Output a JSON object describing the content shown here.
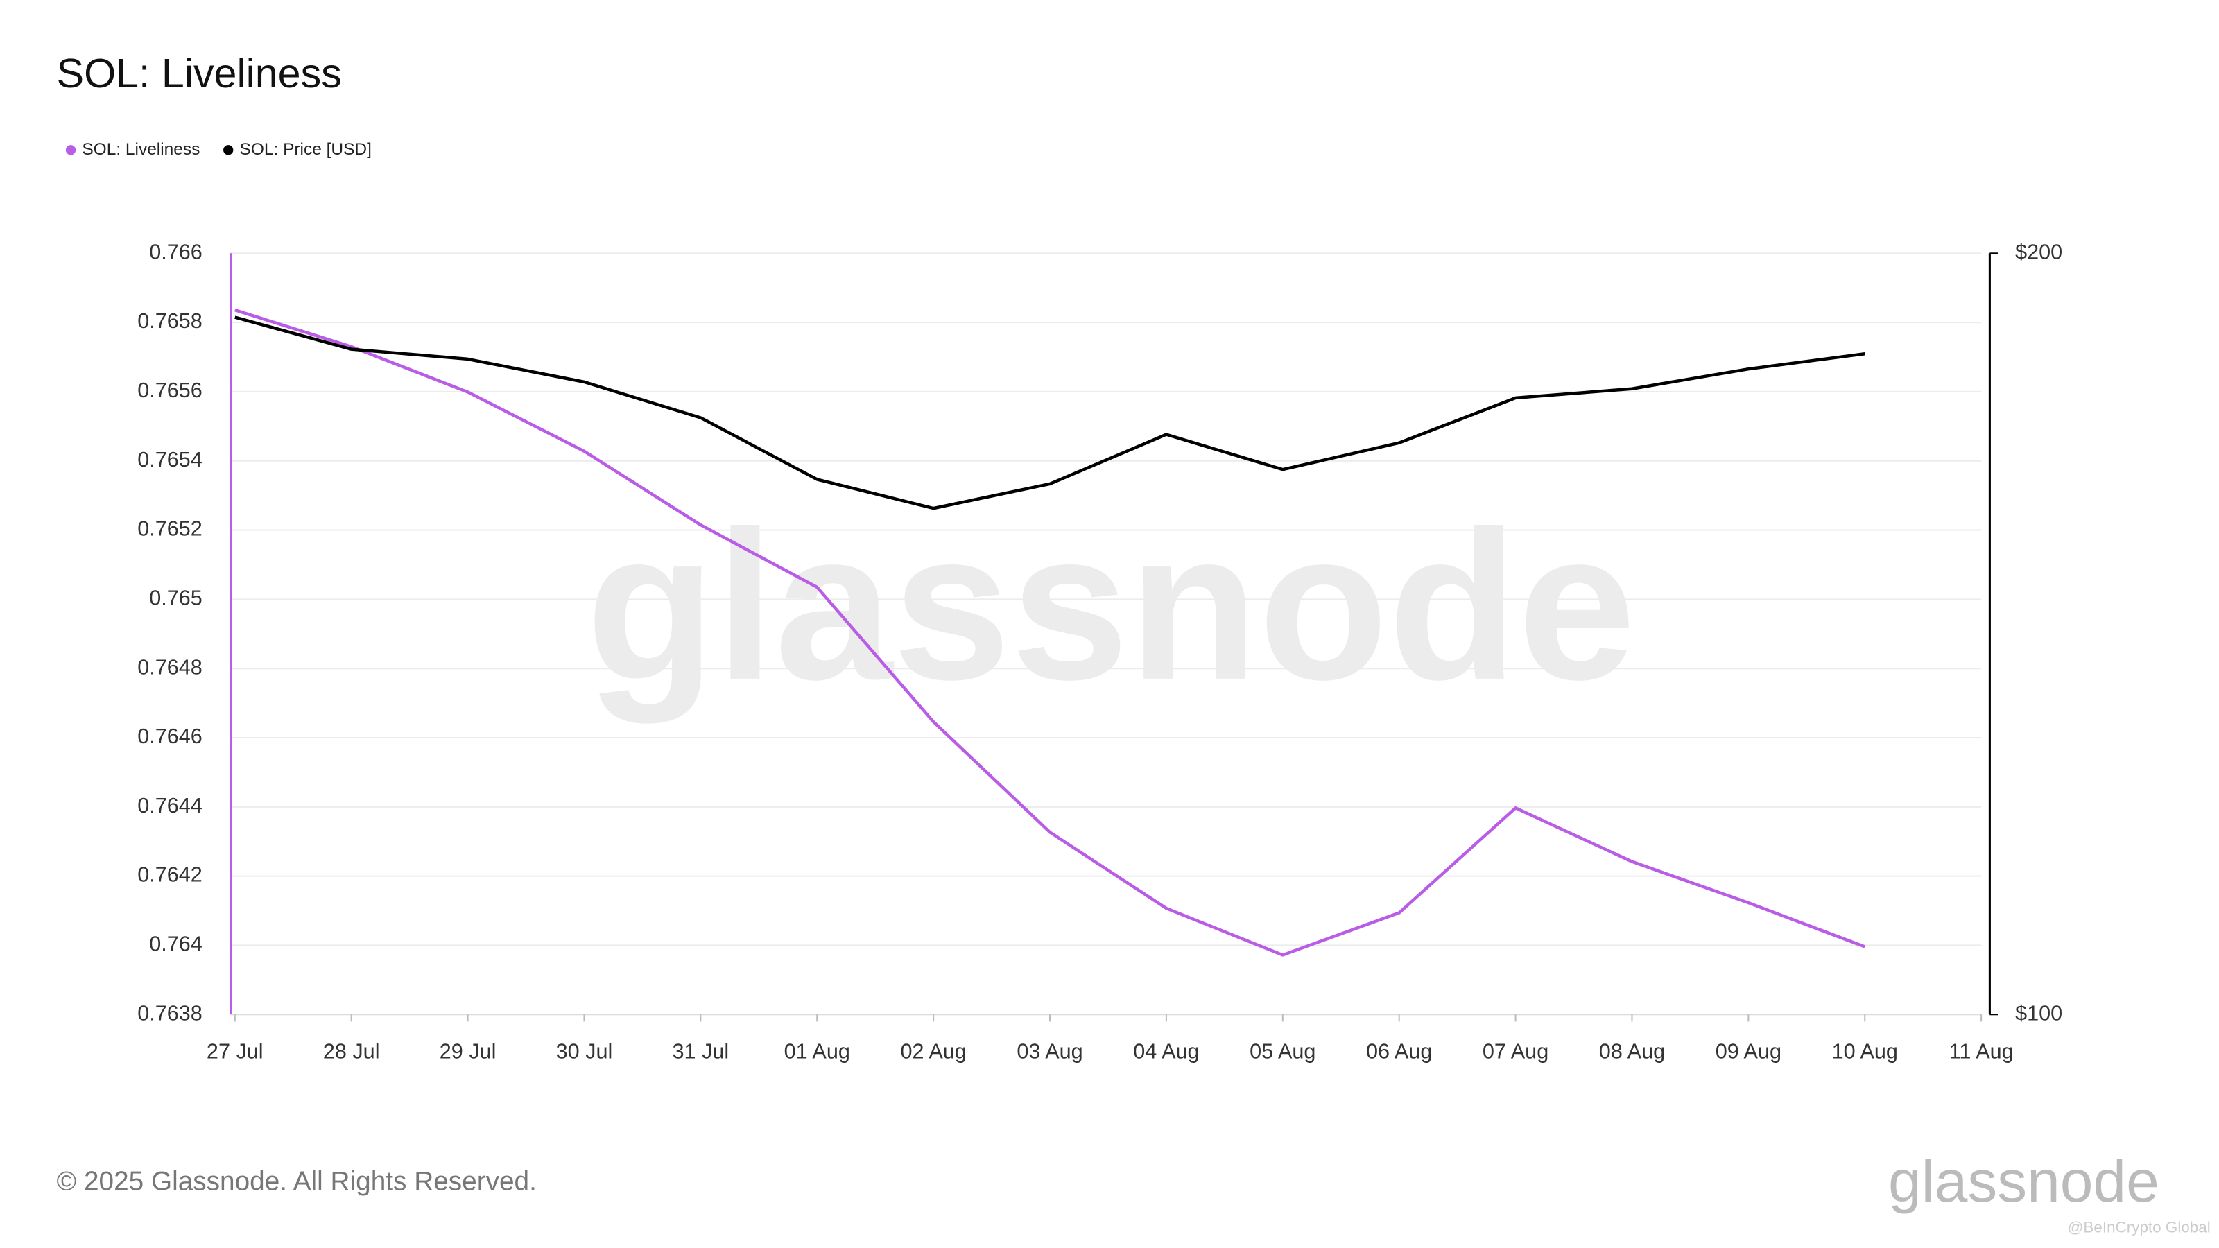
{
  "chart_data": {
    "type": "line",
    "title": "SOL: Liveliness",
    "categories": [
      "27 Jul",
      "28 Jul",
      "29 Jul",
      "30 Jul",
      "31 Jul",
      "01 Aug",
      "02 Aug",
      "03 Aug",
      "04 Aug",
      "05 Aug",
      "06 Aug",
      "07 Aug",
      "08 Aug",
      "09 Aug",
      "10 Aug",
      "11 Aug"
    ],
    "series": [
      {
        "name": "SOL: Liveliness",
        "color": "#b95ce6",
        "axis": "y",
        "values": [
          0.765836,
          0.76573,
          0.765599,
          0.765428,
          0.765215,
          0.765035,
          0.764646,
          0.764327,
          0.764107,
          0.763972,
          0.764094,
          0.764397,
          0.764242,
          0.764123,
          0.763996,
          null
        ]
      },
      {
        "name": "SOL: Price [USD]",
        "color": "#000000",
        "axis": "y2",
        "values": [
          191.6,
          187.4,
          186.1,
          183.1,
          178.4,
          170.3,
          166.5,
          169.7,
          176.2,
          171.6,
          175.1,
          181.0,
          182.2,
          184.8,
          186.8,
          null
        ]
      }
    ],
    "ylim": [
      0.7638,
      0.766
    ],
    "yticks": [
      0.7638,
      0.764,
      0.7642,
      0.7644,
      0.7646,
      0.7648,
      0.765,
      0.7652,
      0.7654,
      0.7656,
      0.7658,
      0.766
    ],
    "y2lim": [
      100,
      200
    ],
    "y2ticks": [
      {
        "value": 100,
        "label": "$100"
      },
      {
        "value": 200,
        "label": "$200"
      }
    ],
    "grid": true
  },
  "watermark": "glassnode",
  "footer": {
    "copyright": "© 2025 Glassnode. All Rights Reserved.",
    "logo": "glassnode",
    "credit": "@BeInCrypto Global"
  }
}
